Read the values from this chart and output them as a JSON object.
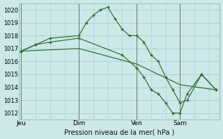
{
  "background_color": "#cce8e8",
  "grid_color": "#aad4d4",
  "line_color": "#2d6b2d",
  "vline_color": "#556655",
  "title": "Pression niveau de la mer( hPa )",
  "ylim": [
    1011.5,
    1020.5
  ],
  "yticks": [
    1012,
    1013,
    1014,
    1015,
    1016,
    1017,
    1018,
    1019,
    1020
  ],
  "day_labels": [
    "Jeu",
    "Dim",
    "Ven",
    "Sam"
  ],
  "day_positions": [
    0,
    8,
    16,
    22
  ],
  "xlim": [
    -0.3,
    27.5
  ],
  "line1_x": [
    0,
    2,
    4,
    8,
    9,
    10,
    11,
    12,
    13,
    14,
    15,
    16,
    17,
    18,
    19,
    20,
    21,
    22,
    23,
    25,
    27
  ],
  "line1_y": [
    1016.8,
    1017.3,
    1017.8,
    1018.0,
    1019.0,
    1019.6,
    1020.0,
    1020.2,
    1019.3,
    1018.5,
    1018.0,
    1018.0,
    1017.5,
    1016.5,
    1016.0,
    1014.8,
    1013.8,
    1012.8,
    1013.0,
    1015.0,
    1013.8
  ],
  "line2_x": [
    0,
    2,
    4,
    8,
    14,
    16,
    17,
    18,
    19,
    20,
    21,
    22,
    23,
    25,
    27
  ],
  "line2_y": [
    1016.8,
    1017.3,
    1017.5,
    1017.8,
    1016.5,
    1015.5,
    1014.8,
    1013.8,
    1013.5,
    1012.8,
    1012.0,
    1012.0,
    1013.5,
    1015.0,
    1013.8
  ],
  "line3_x": [
    0,
    8,
    16,
    22,
    27
  ],
  "line3_y": [
    1016.8,
    1017.0,
    1015.8,
    1014.2,
    1013.8
  ],
  "ytick_fontsize": 6,
  "xtick_fontsize": 6.5,
  "xlabel_fontsize": 7
}
